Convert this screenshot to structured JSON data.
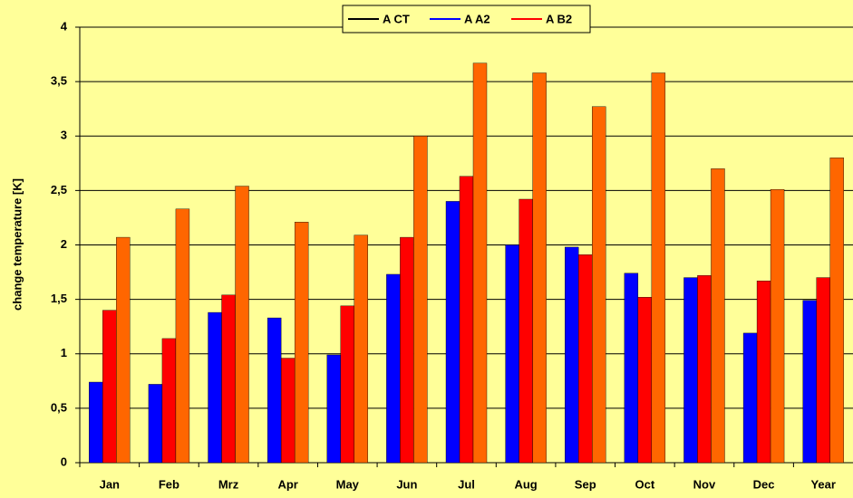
{
  "chart_data": {
    "type": "bar",
    "y_label": "change temperature [K]",
    "categories": [
      "Jan",
      "Feb",
      "Mrz",
      "Apr",
      "May",
      "Jun",
      "Jul",
      "Aug",
      "Sep",
      "Oct",
      "Nov",
      "Dec",
      "Year"
    ],
    "series": [
      {
        "name": "A CT",
        "color": "#0000ff",
        "legend_color": "#000000",
        "values": [
          0.74,
          0.72,
          1.38,
          1.33,
          0.99,
          1.73,
          2.4,
          2.0,
          1.98,
          1.74,
          1.7,
          1.19,
          1.49
        ]
      },
      {
        "name": "A A2",
        "color": "#ff0000",
        "legend_color": "#0000ff",
        "values": [
          1.4,
          1.14,
          1.54,
          0.96,
          1.44,
          2.07,
          2.63,
          2.42,
          1.91,
          1.52,
          1.72,
          1.67,
          1.7
        ]
      },
      {
        "name": "A B2",
        "color": "#ff6600",
        "legend_color": "#ff0000",
        "values": [
          2.07,
          2.33,
          2.54,
          2.21,
          2.09,
          3.0,
          3.67,
          3.58,
          3.27,
          3.58,
          2.7,
          2.51,
          2.8
        ]
      }
    ],
    "ylim": [
      0,
      4
    ],
    "yticks": [
      0,
      {
        "value": 0.5,
        "label": "0,5"
      },
      1,
      {
        "value": 1.5,
        "label": "1,5"
      },
      2,
      {
        "value": 2.5,
        "label": "2,5"
      },
      3,
      {
        "value": 3.5,
        "label": "3,5"
      },
      4
    ],
    "grid": true,
    "legend": "top"
  }
}
